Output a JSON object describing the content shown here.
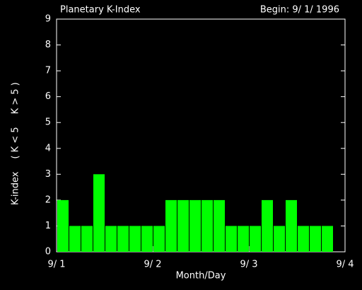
{
  "chart_data": {
    "type": "bar",
    "title": "Planetary K-Index",
    "subtitle": "Begin: 9/ 1/ 1996",
    "y_label_parts": [
      {
        "text": "K-index",
        "color": "#ffffff"
      },
      {
        "text": "( K < 5",
        "color": "#00ff00"
      },
      {
        "text": "K > 5 )",
        "color": "#ff0000"
      }
    ],
    "x_label": "Month/Day",
    "x": [
      0,
      0.125,
      0.25,
      0.375,
      0.5,
      0.625,
      0.75,
      0.875,
      1,
      1.125,
      1.25,
      1.375,
      1.5,
      1.625,
      1.75,
      1.875,
      2,
      2.125,
      2.25,
      2.375,
      2.5,
      2.625,
      2.75
    ],
    "values": [
      2,
      1,
      1,
      3,
      1,
      1,
      1,
      1,
      1,
      2,
      2,
      2,
      2,
      2,
      1,
      1,
      1,
      2,
      1,
      2,
      1,
      1,
      1
    ],
    "color": "#00ff00",
    "xlim": [
      0,
      3
    ],
    "xticks": [
      {
        "value": 0,
        "label": "9/ 1"
      },
      {
        "value": 1,
        "label": "9/ 2"
      },
      {
        "value": 2,
        "label": "9/ 3"
      },
      {
        "value": 3,
        "label": "9/ 4"
      }
    ],
    "ylim": [
      0,
      9
    ],
    "yticks": [
      0,
      1,
      2,
      3,
      4,
      5,
      6,
      7,
      8,
      9
    ],
    "grid": false
  }
}
